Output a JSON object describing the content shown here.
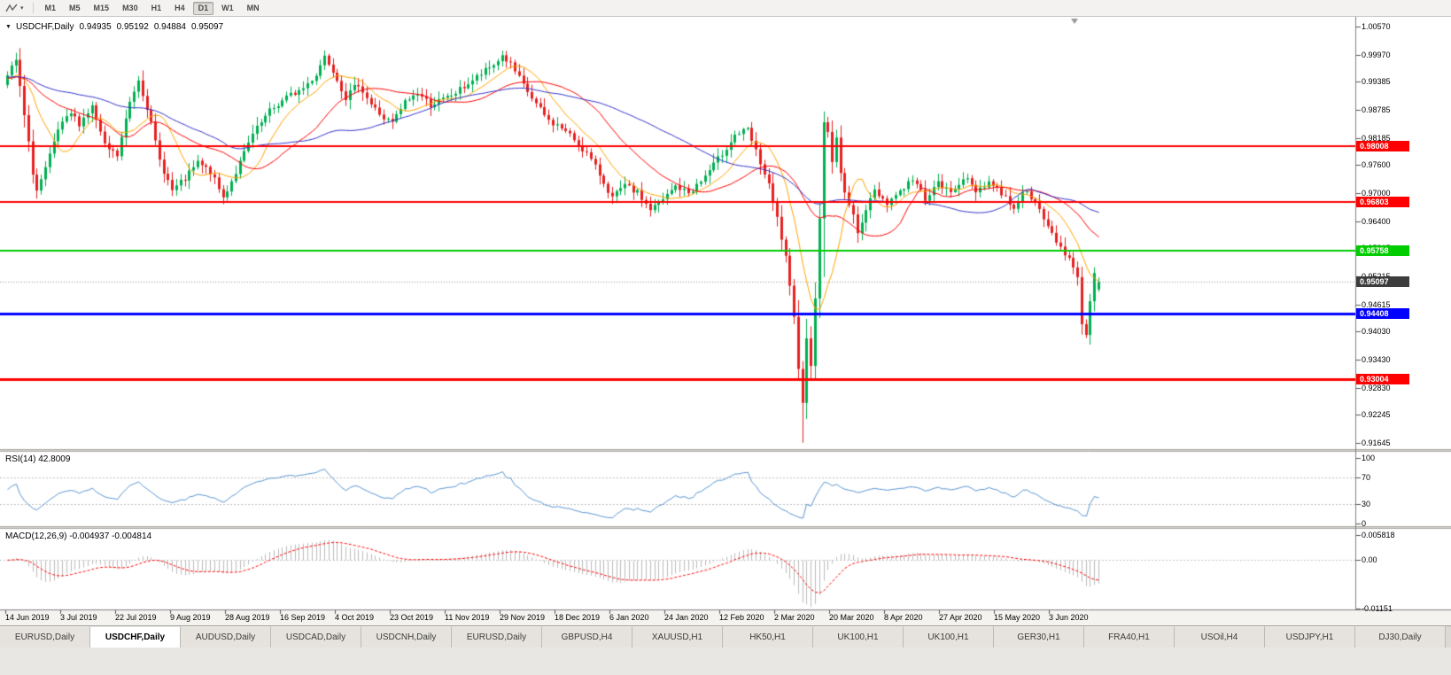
{
  "toolbar": {
    "timeframes": [
      "M1",
      "M5",
      "M15",
      "M30",
      "H1",
      "H4",
      "D1",
      "W1",
      "MN"
    ],
    "active": "D1"
  },
  "chart": {
    "header": {
      "symbol": "USDCHF,Daily",
      "open": "0.94935",
      "high": "0.95192",
      "low": "0.94884",
      "close": "0.95097"
    },
    "price_scale": [
      "1.00570",
      "0.99970",
      "0.99385",
      "0.98785",
      "0.98185",
      "0.97600",
      "0.97000",
      "0.96400",
      "0.95815",
      "0.95215",
      "0.94615",
      "0.94030",
      "0.93430",
      "0.92830",
      "0.92245",
      "0.91645"
    ],
    "dates": [
      "14 Jun 2019",
      "3 Jul 2019",
      "22 Jul 2019",
      "9 Aug 2019",
      "28 Aug 2019",
      "16 Sep 2019",
      "4 Oct 2019",
      "23 Oct 2019",
      "11 Nov 2019",
      "29 Nov 2019",
      "18 Dec 2019",
      "6 Jan 2020",
      "24 Jan 2020",
      "12 Feb 2020",
      "2 Mar 2020",
      "20 Mar 2020",
      "8 Apr 2020",
      "27 Apr 2020",
      "15 May 2020",
      "3 Jun 2020"
    ],
    "current_price_label": "0.95097"
  },
  "rsi": {
    "label": "RSI(14) 42.8009",
    "scale": [
      "100",
      "70",
      "30",
      "0"
    ],
    "scale_values": [
      100,
      70,
      30,
      0
    ]
  },
  "macd": {
    "label": "MACD(12,26,9) -0.004937 -0.004814",
    "scale": [
      "0.005818",
      "0.00",
      "-0.01151"
    ],
    "scale_values": [
      0.005818,
      0,
      -0.01151
    ]
  },
  "tabs": [
    {
      "label": "EURUSD,Daily",
      "active": false
    },
    {
      "label": "USDCHF,Daily",
      "active": true
    },
    {
      "label": "AUDUSD,Daily",
      "active": false
    },
    {
      "label": "USDCAD,Daily",
      "active": false
    },
    {
      "label": "USDCNH,Daily",
      "active": false
    },
    {
      "label": "EURUSD,Daily",
      "active": false
    },
    {
      "label": "GBPUSD,H4",
      "active": false
    },
    {
      "label": "XAUUSD,H1",
      "active": false
    },
    {
      "label": "HK50,H1",
      "active": false
    },
    {
      "label": "UK100,H1",
      "active": false
    },
    {
      "label": "UK100,H1",
      "active": false
    },
    {
      "label": "GER30,H1",
      "active": false
    },
    {
      "label": "FRA40,H1",
      "active": false
    },
    {
      "label": "USOil,H4",
      "active": false
    },
    {
      "label": "USDJPY,H1",
      "active": false
    },
    {
      "label": "DJ30,Daily",
      "active": false
    }
  ],
  "chart_data": {
    "type": "candlestick",
    "symbol": "USDCHF",
    "timeframe": "Daily",
    "visible_range": {
      "price_min": 0.91645,
      "price_max": 1.0057,
      "date_start": "14 Jun 2019",
      "date_end": "3 Jun 2020"
    },
    "last_candle": {
      "open": 0.94935,
      "high": 0.95192,
      "low": 0.94884,
      "close": 0.95097
    },
    "close_anchors": [
      [
        0,
        0.995
      ],
      [
        2,
        0.9985
      ],
      [
        4,
        0.9865
      ],
      [
        6,
        0.9745
      ],
      [
        7,
        0.9705
      ],
      [
        9,
        0.975
      ],
      [
        12,
        0.9835
      ],
      [
        15,
        0.987
      ],
      [
        17,
        0.985
      ],
      [
        20,
        0.9885
      ],
      [
        23,
        0.98
      ],
      [
        26,
        0.978
      ],
      [
        29,
        0.9895
      ],
      [
        31,
        0.9945
      ],
      [
        33,
        0.9885
      ],
      [
        36,
        0.977
      ],
      [
        39,
        0.9705
      ],
      [
        42,
        0.973
      ],
      [
        45,
        0.9765
      ],
      [
        48,
        0.9745
      ],
      [
        51,
        0.969
      ],
      [
        54,
        0.9745
      ],
      [
        58,
        0.9825
      ],
      [
        62,
        0.9875
      ],
      [
        66,
        0.9905
      ],
      [
        70,
        0.9925
      ],
      [
        73,
        0.9955
      ],
      [
        75,
        0.9995
      ],
      [
        77,
        0.9965
      ],
      [
        80,
        0.9905
      ],
      [
        83,
        0.9935
      ],
      [
        86,
        0.989
      ],
      [
        89,
        0.986
      ],
      [
        91,
        0.985
      ],
      [
        94,
        0.9895
      ],
      [
        97,
        0.9915
      ],
      [
        100,
        0.989
      ],
      [
        103,
        0.99
      ],
      [
        106,
        0.9915
      ],
      [
        109,
        0.9935
      ],
      [
        112,
        0.9955
      ],
      [
        115,
        0.9975
      ],
      [
        117,
        0.9995
      ],
      [
        119,
        0.9975
      ],
      [
        122,
        0.993
      ],
      [
        125,
        0.989
      ],
      [
        128,
        0.9855
      ],
      [
        131,
        0.984
      ],
      [
        134,
        0.9815
      ],
      [
        137,
        0.9785
      ],
      [
        140,
        0.974
      ],
      [
        143,
        0.969
      ],
      [
        146,
        0.9715
      ],
      [
        149,
        0.97
      ],
      [
        152,
        0.9665
      ],
      [
        155,
        0.9685
      ],
      [
        158,
        0.9715
      ],
      [
        161,
        0.97
      ],
      [
        164,
        0.9725
      ],
      [
        167,
        0.976
      ],
      [
        169,
        0.9785
      ],
      [
        172,
        0.9825
      ],
      [
        175,
        0.9835
      ],
      [
        178,
        0.9765
      ],
      [
        180,
        0.9715
      ],
      [
        182,
        0.9645
      ],
      [
        184,
        0.956
      ],
      [
        186,
        0.943
      ],
      [
        187,
        0.933
      ],
      [
        188,
        0.9255
      ],
      [
        189,
        0.9385
      ],
      [
        190,
        0.9335
      ],
      [
        191,
        0.948
      ],
      [
        192,
        0.964
      ],
      [
        193,
        0.9855
      ],
      [
        194,
        0.983
      ],
      [
        195,
        0.977
      ],
      [
        196,
        0.9815
      ],
      [
        197,
        0.974
      ],
      [
        199,
        0.9675
      ],
      [
        201,
        0.962
      ],
      [
        203,
        0.9665
      ],
      [
        205,
        0.9705
      ],
      [
        208,
        0.968
      ],
      [
        211,
        0.9705
      ],
      [
        214,
        0.973
      ],
      [
        217,
        0.969
      ],
      [
        220,
        0.972
      ],
      [
        223,
        0.97
      ],
      [
        226,
        0.9735
      ],
      [
        229,
        0.9705
      ],
      [
        232,
        0.9725
      ],
      [
        235,
        0.97
      ],
      [
        238,
        0.967
      ],
      [
        241,
        0.971
      ],
      [
        244,
        0.966
      ],
      [
        247,
        0.9612
      ],
      [
        249,
        0.9585
      ],
      [
        251,
        0.956
      ],
      [
        253,
        0.9515
      ],
      [
        254,
        0.9425
      ],
      [
        255,
        0.9395
      ],
      [
        256,
        0.947
      ],
      [
        257,
        0.9535
      ],
      [
        258,
        0.951
      ]
    ],
    "special_bars": {
      "188": {
        "low": 0.9165
      },
      "193": {
        "high": 0.9875,
        "low": 0.952
      }
    },
    "horizontal_levels": [
      {
        "price": 0.98008,
        "color": "#ff0000",
        "width": 2
      },
      {
        "price": 0.96803,
        "color": "#ff0000",
        "width": 2
      },
      {
        "price": 0.95758,
        "color": "#00cc00",
        "width": 2
      },
      {
        "price": 0.94408,
        "color": "#0000ff",
        "width": 3
      },
      {
        "price": 0.93004,
        "color": "#ff0000",
        "width": 3
      }
    ],
    "current_price": 0.95097,
    "moving_averages": [
      {
        "period": 10,
        "color": "#ffa500"
      },
      {
        "period": 25,
        "color": "#ff0000"
      },
      {
        "period": 50,
        "color": "#3333cc"
      }
    ],
    "rsi": {
      "period": 14,
      "value": 42.8009,
      "levels": [
        70,
        30
      ],
      "color": "#5a96d2"
    },
    "macd": {
      "fast": 12,
      "slow": 26,
      "signal": 9,
      "macd_value": -0.004937,
      "signal_value": -0.004814,
      "hist_color": "#bbbbbb",
      "signal_color": "#ff0000"
    },
    "candle_up_color": "#00b050",
    "candle_down_color": "#e62020"
  }
}
